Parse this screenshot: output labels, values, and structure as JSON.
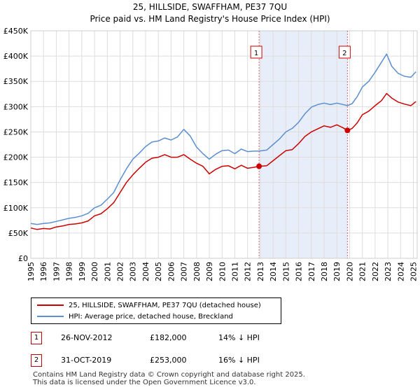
{
  "chart_data": {
    "type": "line",
    "title": "25, HILLSIDE, SWAFFHAM, PE37 7QU",
    "subtitle": "Price paid vs. HM Land Registry's House Price Index (HPI)",
    "xlim": [
      1995,
      2025.3
    ],
    "ylim": [
      0,
      450000
    ],
    "x_ticks": [
      "1995",
      "1996",
      "1997",
      "1998",
      "1999",
      "2000",
      "2001",
      "2002",
      "2003",
      "2004",
      "2005",
      "2006",
      "2007",
      "2008",
      "2009",
      "2010",
      "2011",
      "2012",
      "2013",
      "2014",
      "2015",
      "2016",
      "2017",
      "2018",
      "2019",
      "2020",
      "2021",
      "2022",
      "2023",
      "2024",
      "2025"
    ],
    "y_ticks": [
      {
        "value": 0,
        "label": "£0"
      },
      {
        "value": 50000,
        "label": "£50K"
      },
      {
        "value": 100000,
        "label": "£100K"
      },
      {
        "value": 150000,
        "label": "£150K"
      },
      {
        "value": 200000,
        "label": "£200K"
      },
      {
        "value": 250000,
        "label": "£250K"
      },
      {
        "value": 300000,
        "label": "£300K"
      },
      {
        "value": 350000,
        "label": "£350K"
      },
      {
        "value": 400000,
        "label": "£400K"
      },
      {
        "value": 450000,
        "label": "£450K"
      }
    ],
    "grid": true,
    "shaded_region": [
      2012.9,
      2019.83
    ],
    "series": [
      {
        "name": "25, HILLSIDE, SWAFFHAM, PE37 7QU (detached house)",
        "color": "#cc0000",
        "x": [
          1995,
          1995.5,
          1996,
          1996.5,
          1997,
          1997.5,
          1998,
          1998.5,
          1999,
          1999.5,
          2000,
          2000.5,
          2001,
          2001.5,
          2002,
          2002.5,
          2003,
          2003.5,
          2004,
          2004.5,
          2005,
          2005.5,
          2006,
          2006.5,
          2007,
          2007.5,
          2008,
          2008.5,
          2009,
          2009.5,
          2010,
          2010.5,
          2011,
          2011.5,
          2012,
          2012.5,
          2012.9,
          2013.5,
          2014,
          2014.5,
          2015,
          2015.5,
          2016,
          2016.5,
          2017,
          2017.5,
          2018,
          2018.5,
          2019,
          2019.5,
          2019.83,
          2020.2,
          2020.6,
          2021,
          2021.5,
          2022,
          2022.5,
          2022.9,
          2023.3,
          2023.8,
          2024.3,
          2024.8,
          2025.2
        ],
        "values": [
          60000,
          57000,
          59000,
          58000,
          62000,
          64000,
          67000,
          68000,
          70000,
          74000,
          84000,
          88000,
          98000,
          110000,
          130000,
          150000,
          165000,
          178000,
          190000,
          198000,
          200000,
          205000,
          200000,
          200000,
          205000,
          196000,
          188000,
          182000,
          167000,
          176000,
          182000,
          183000,
          177000,
          184000,
          178000,
          180000,
          182000,
          183000,
          193000,
          203000,
          213000,
          215000,
          227000,
          241000,
          250000,
          256000,
          262000,
          259000,
          264000,
          258000,
          253000,
          257000,
          268000,
          284000,
          291000,
          302000,
          312000,
          326000,
          317000,
          309000,
          305000,
          302000,
          310000
        ]
      },
      {
        "name": "HPI: Average price, detached house, Breckland",
        "color": "#5b8fd0",
        "x": [
          1995,
          1995.5,
          1996,
          1996.5,
          1997,
          1997.5,
          1998,
          1998.5,
          1999,
          1999.5,
          2000,
          2000.5,
          2001,
          2001.5,
          2002,
          2002.5,
          2003,
          2003.5,
          2004,
          2004.5,
          2005,
          2005.5,
          2006,
          2006.5,
          2007,
          2007.5,
          2008,
          2008.5,
          2009,
          2009.5,
          2010,
          2010.5,
          2011,
          2011.5,
          2012,
          2012.5,
          2012.9,
          2013.5,
          2014,
          2014.5,
          2015,
          2015.5,
          2016,
          2016.5,
          2017,
          2017.5,
          2018,
          2018.5,
          2019,
          2019.5,
          2019.83,
          2020.2,
          2020.6,
          2021,
          2021.5,
          2022,
          2022.5,
          2022.9,
          2023.3,
          2023.8,
          2024.3,
          2024.8,
          2025.2
        ],
        "values": [
          69000,
          67000,
          69000,
          70000,
          73000,
          76000,
          79000,
          81000,
          84000,
          89000,
          100000,
          105000,
          117000,
          130000,
          155000,
          177000,
          196000,
          208000,
          221000,
          230000,
          232000,
          238000,
          234000,
          240000,
          255000,
          242000,
          220000,
          207000,
          196000,
          206000,
          213000,
          214000,
          207000,
          216000,
          211000,
          212000,
          212000,
          214000,
          225000,
          236000,
          250000,
          257000,
          269000,
          286000,
          299000,
          304000,
          307000,
          304000,
          307000,
          304000,
          302000,
          306000,
          320000,
          339000,
          350000,
          368000,
          388000,
          404000,
          380000,
          366000,
          360000,
          358000,
          369000
        ]
      }
    ],
    "sales": [
      {
        "label": "1",
        "x": 2012.9,
        "value": 182000
      },
      {
        "label": "2",
        "x": 2019.83,
        "value": 253000
      }
    ]
  },
  "legend": {
    "property_label": "25, HILLSIDE, SWAFFHAM, PE37 7QU (detached house)",
    "hpi_label": "HPI: Average price, detached house, Breckland"
  },
  "transactions": [
    {
      "num": "1",
      "date": "26-NOV-2012",
      "price": "£182,000",
      "hpi_diff": "14% ↓ HPI"
    },
    {
      "num": "2",
      "date": "31-OCT-2019",
      "price": "£253,000",
      "hpi_diff": "16% ↓ HPI"
    }
  ],
  "footer": {
    "line1": "Contains HM Land Registry data © Crown copyright and database right 2025.",
    "line2": "This data is licensed under the Open Government Licence v3.0."
  },
  "colors": {
    "property": "#cc0000",
    "hpi": "#5b8fd0",
    "shade": "#e8eef9",
    "grid": "#dddddd"
  }
}
